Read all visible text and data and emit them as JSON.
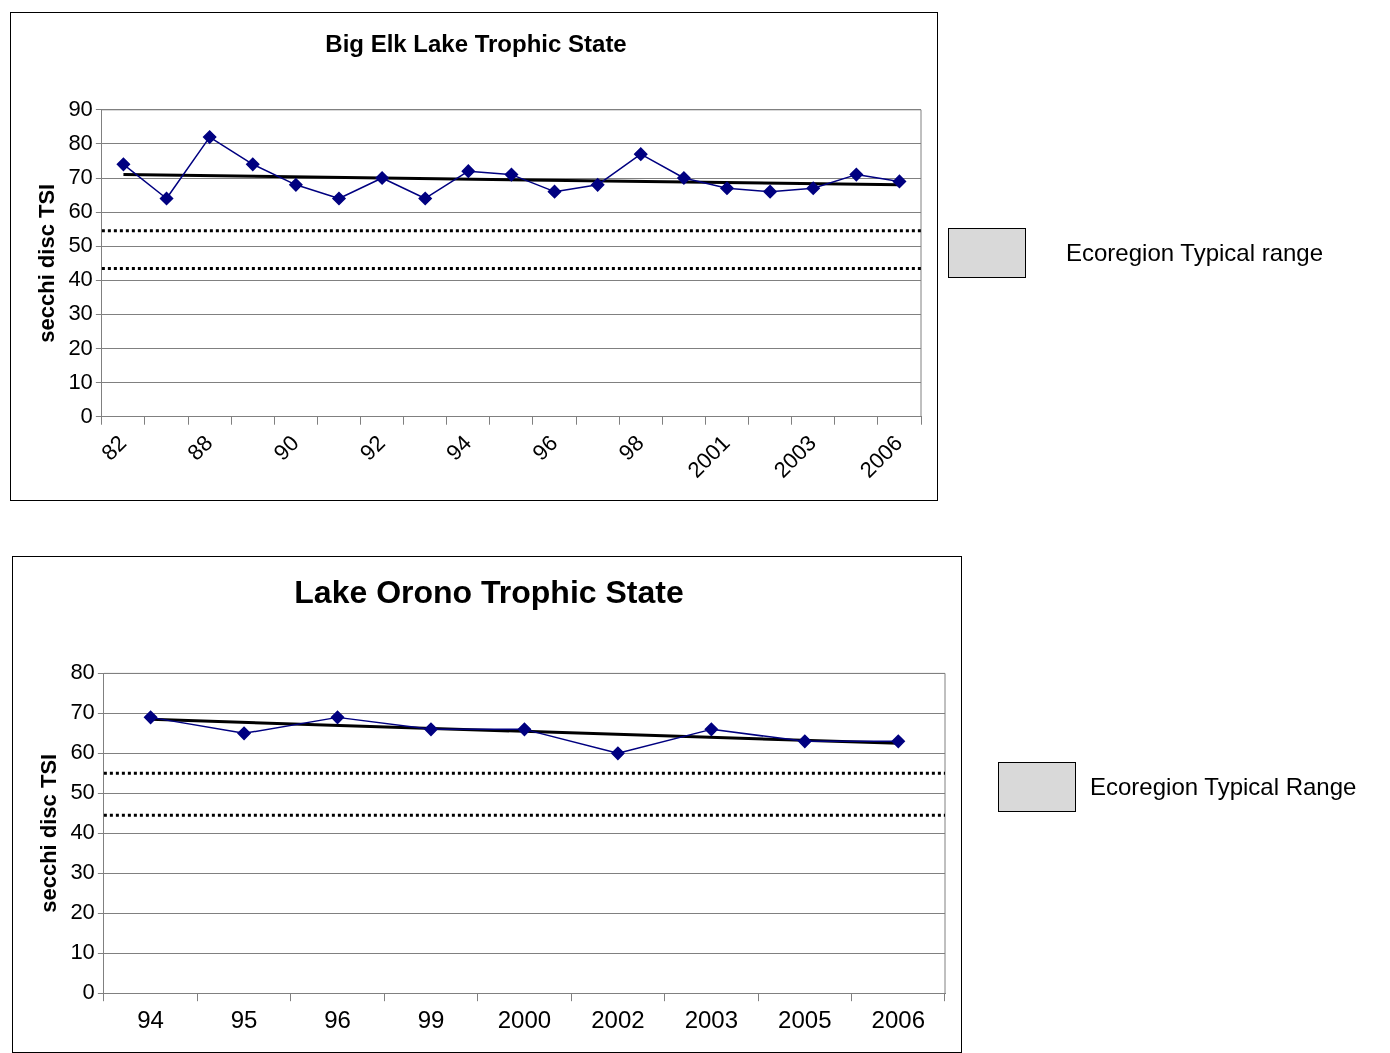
{
  "chart_data": [
    {
      "type": "line",
      "title": "Big Elk Lake Trophic State",
      "ylabel": "secchi disc TSI",
      "categories": [
        "82",
        null,
        "88",
        null,
        "90",
        null,
        "92",
        null,
        "94",
        null,
        "96",
        null,
        "98",
        null,
        "2001",
        null,
        "2003",
        null,
        "2006"
      ],
      "series": [
        {
          "color": "#000080",
          "marker": "diamond",
          "values": [
            74,
            64,
            82,
            74,
            68,
            64,
            70,
            64,
            72,
            71,
            66,
            68,
            77,
            70,
            67,
            66,
            67,
            71,
            69
          ]
        },
        {
          "color": "#000000",
          "marker": "none",
          "values": [
            71,
            null,
            null,
            null,
            null,
            null,
            null,
            null,
            null,
            null,
            null,
            null,
            null,
            null,
            null,
            null,
            null,
            null,
            68
          ]
        }
      ],
      "ref_lines": [
        {
          "axis": "y",
          "value": 54.5,
          "color": "#000000",
          "line_style": "dotted"
        },
        {
          "axis": "y",
          "value": 43.5,
          "color": "#000000",
          "line_style": "dotted"
        }
      ],
      "annotations": [
        "Ecoregion Typical range"
      ],
      "ylim": [
        0,
        90
      ],
      "yticks": [
        0,
        10,
        20,
        30,
        40,
        50,
        60,
        70,
        80,
        90
      ],
      "grid": "y"
    },
    {
      "type": "line",
      "title": "Lake Orono Trophic State",
      "ylabel": "secchi disc TSI",
      "categories": [
        "94",
        "95",
        "96",
        "99",
        "2000",
        "2002",
        "2003",
        "2005",
        "2006"
      ],
      "series": [
        {
          "color": "#000080",
          "marker": "diamond",
          "values": [
            69,
            65,
            69,
            66,
            66,
            60,
            66,
            63,
            63
          ]
        },
        {
          "color": "#000000",
          "marker": "none",
          "values": [
            68.5,
            null,
            null,
            null,
            null,
            null,
            null,
            null,
            62.5
          ]
        }
      ],
      "ref_lines": [
        {
          "axis": "y",
          "value": 55,
          "color": "#000000",
          "line_style": "dotted"
        },
        {
          "axis": "y",
          "value": 44.5,
          "color": "#000000",
          "line_style": "dotted"
        }
      ],
      "annotations": [
        "Ecoregion Typical Range"
      ],
      "ylim": [
        0,
        80
      ],
      "yticks": [
        0,
        10,
        20,
        30,
        40,
        50,
        60,
        70,
        80
      ],
      "grid": "y"
    }
  ]
}
